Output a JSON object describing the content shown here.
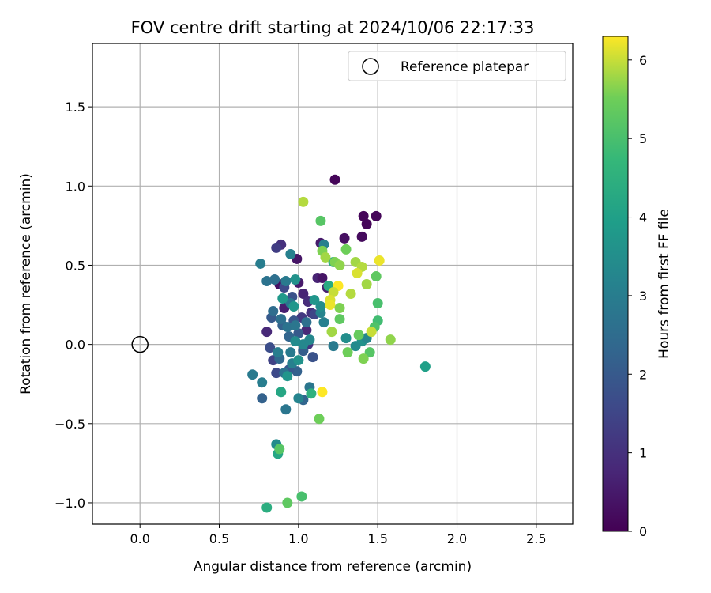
{
  "chart_data": {
    "type": "scatter",
    "title": "FOV centre drift starting at 2024/10/06 22:17:33",
    "xlabel": "Angular distance from reference (arcmin)",
    "ylabel": "Rotation from reference (arcmin)",
    "xlim": [
      -0.3,
      2.73
    ],
    "ylim": [
      -1.135,
      1.9
    ],
    "x_ticks": [
      0.0,
      0.5,
      1.0,
      1.5,
      2.0,
      2.5
    ],
    "x_tick_labels": [
      "0.0",
      "0.5",
      "1.0",
      "1.5",
      "2.0",
      "2.5"
    ],
    "y_ticks": [
      -1.0,
      -0.5,
      0.0,
      0.5,
      1.0,
      1.5
    ],
    "y_tick_labels": [
      "−1.0",
      "−0.5",
      "0.0",
      "0.5",
      "1.0",
      "1.5"
    ],
    "grid": true,
    "legend": {
      "placement": "top-right",
      "entries": [
        {
          "label": "Reference platepar",
          "marker": "open-circle"
        }
      ]
    },
    "reference_point": {
      "x": 0.0,
      "y": 0.0
    },
    "colorbar": {
      "label": "Hours from first FF file",
      "colormap": "viridis",
      "range": [
        0,
        6.3
      ],
      "ticks": [
        0,
        1,
        2,
        3,
        4,
        5,
        6
      ],
      "tick_labels": [
        "0",
        "1",
        "2",
        "3",
        "4",
        "5",
        "6"
      ]
    },
    "points": [
      {
        "x": 1.23,
        "y": 1.04,
        "h": 0.1
      },
      {
        "x": 1.41,
        "y": 0.81,
        "h": 0.1
      },
      {
        "x": 1.49,
        "y": 0.81,
        "h": 0.1
      },
      {
        "x": 1.43,
        "y": 0.76,
        "h": 0.1
      },
      {
        "x": 1.4,
        "y": 0.68,
        "h": 0.2
      },
      {
        "x": 1.29,
        "y": 0.67,
        "h": 0.3
      },
      {
        "x": 1.14,
        "y": 0.64,
        "h": 0.5
      },
      {
        "x": 0.99,
        "y": 0.54,
        "h": 0.4
      },
      {
        "x": 0.89,
        "y": 0.63,
        "h": 1.0
      },
      {
        "x": 0.86,
        "y": 0.61,
        "h": 1.3
      },
      {
        "x": 1.12,
        "y": 0.42,
        "h": 0.7
      },
      {
        "x": 1.15,
        "y": 0.42,
        "h": 0.4
      },
      {
        "x": 1.0,
        "y": 0.39,
        "h": 0.5
      },
      {
        "x": 0.88,
        "y": 0.38,
        "h": 0.3
      },
      {
        "x": 1.18,
        "y": 0.36,
        "h": 0.6
      },
      {
        "x": 1.03,
        "y": 0.32,
        "h": 0.7
      },
      {
        "x": 1.06,
        "y": 0.27,
        "h": 0.9
      },
      {
        "x": 0.91,
        "y": 0.23,
        "h": 0.6
      },
      {
        "x": 1.08,
        "y": 0.2,
        "h": 1.0
      },
      {
        "x": 1.02,
        "y": 0.17,
        "h": 1.2
      },
      {
        "x": 1.05,
        "y": 0.09,
        "h": 0.8
      },
      {
        "x": 0.8,
        "y": 0.08,
        "h": 0.8
      },
      {
        "x": 1.06,
        "y": 0.0,
        "h": 1.1
      },
      {
        "x": 0.84,
        "y": -0.1,
        "h": 1.4
      },
      {
        "x": 0.86,
        "y": -0.18,
        "h": 1.6
      },
      {
        "x": 1.09,
        "y": -0.08,
        "h": 1.8
      },
      {
        "x": 0.91,
        "y": 0.36,
        "h": 1.6
      },
      {
        "x": 0.96,
        "y": 0.3,
        "h": 1.8
      },
      {
        "x": 0.83,
        "y": 0.17,
        "h": 2.0
      },
      {
        "x": 0.97,
        "y": 0.15,
        "h": 1.9
      },
      {
        "x": 1.1,
        "y": 0.19,
        "h": 1.5
      },
      {
        "x": 0.9,
        "y": 0.12,
        "h": 2.2
      },
      {
        "x": 1.0,
        "y": 0.07,
        "h": 2.0
      },
      {
        "x": 0.82,
        "y": -0.02,
        "h": 1.7
      },
      {
        "x": 0.94,
        "y": 0.05,
        "h": 2.3
      },
      {
        "x": 1.03,
        "y": -0.04,
        "h": 2.1
      },
      {
        "x": 0.88,
        "y": -0.09,
        "h": 2.4
      },
      {
        "x": 0.99,
        "y": -0.17,
        "h": 2.2
      },
      {
        "x": 0.94,
        "y": -0.16,
        "h": 2.0
      },
      {
        "x": 0.77,
        "y": -0.34,
        "h": 2.2
      },
      {
        "x": 1.03,
        "y": -0.35,
        "h": 2.3
      },
      {
        "x": 0.8,
        "y": 0.4,
        "h": 2.7
      },
      {
        "x": 0.85,
        "y": 0.41,
        "h": 2.6
      },
      {
        "x": 0.92,
        "y": 0.4,
        "h": 2.9
      },
      {
        "x": 0.95,
        "y": 0.26,
        "h": 2.8
      },
      {
        "x": 0.84,
        "y": 0.21,
        "h": 2.5
      },
      {
        "x": 0.89,
        "y": 0.16,
        "h": 2.6
      },
      {
        "x": 0.93,
        "y": 0.11,
        "h": 2.7
      },
      {
        "x": 0.98,
        "y": 0.12,
        "h": 2.8
      },
      {
        "x": 1.05,
        "y": 0.14,
        "h": 2.6
      },
      {
        "x": 0.95,
        "y": -0.05,
        "h": 2.9
      },
      {
        "x": 0.87,
        "y": -0.05,
        "h": 3.0
      },
      {
        "x": 0.96,
        "y": -0.12,
        "h": 3.1
      },
      {
        "x": 0.91,
        "y": -0.18,
        "h": 2.7
      },
      {
        "x": 0.71,
        "y": -0.19,
        "h": 2.9
      },
      {
        "x": 0.77,
        "y": -0.24,
        "h": 3.0
      },
      {
        "x": 1.07,
        "y": -0.27,
        "h": 2.8
      },
      {
        "x": 1.0,
        "y": -0.34,
        "h": 3.2
      },
      {
        "x": 0.92,
        "y": -0.41,
        "h": 2.8
      },
      {
        "x": 0.76,
        "y": 0.51,
        "h": 3.0
      },
      {
        "x": 0.95,
        "y": 0.57,
        "h": 3.1
      },
      {
        "x": 1.16,
        "y": 0.63,
        "h": 3.1
      },
      {
        "x": 1.14,
        "y": 0.2,
        "h": 3.2
      },
      {
        "x": 1.16,
        "y": 0.14,
        "h": 3.1
      },
      {
        "x": 1.22,
        "y": -0.01,
        "h": 2.9
      },
      {
        "x": 1.03,
        "y": 0.0,
        "h": 3.3
      },
      {
        "x": 0.98,
        "y": 0.02,
        "h": 3.4
      },
      {
        "x": 1.07,
        "y": 0.03,
        "h": 3.3
      },
      {
        "x": 1.3,
        "y": 0.04,
        "h": 3.5
      },
      {
        "x": 1.4,
        "y": 0.02,
        "h": 3.6
      },
      {
        "x": 1.43,
        "y": 0.04,
        "h": 3.3
      },
      {
        "x": 1.36,
        "y": -0.01,
        "h": 3.4
      },
      {
        "x": 1.14,
        "y": 0.24,
        "h": 3.5
      },
      {
        "x": 1.1,
        "y": 0.28,
        "h": 3.7
      },
      {
        "x": 0.98,
        "y": 0.41,
        "h": 3.6
      },
      {
        "x": 0.9,
        "y": 0.29,
        "h": 3.8
      },
      {
        "x": 0.97,
        "y": 0.24,
        "h": 3.7
      },
      {
        "x": 0.93,
        "y": -0.2,
        "h": 3.7
      },
      {
        "x": 1.0,
        "y": -0.1,
        "h": 3.6
      },
      {
        "x": 0.86,
        "y": -0.63,
        "h": 3.4
      },
      {
        "x": 0.87,
        "y": -0.69,
        "h": 4.2
      },
      {
        "x": 1.8,
        "y": -0.14,
        "h": 4.0
      },
      {
        "x": 1.19,
        "y": 0.37,
        "h": 4.3
      },
      {
        "x": 1.22,
        "y": 0.52,
        "h": 4.4
      },
      {
        "x": 1.08,
        "y": -0.31,
        "h": 4.5
      },
      {
        "x": 0.89,
        "y": -0.3,
        "h": 4.2
      },
      {
        "x": 1.5,
        "y": 0.26,
        "h": 5.0
      },
      {
        "x": 1.5,
        "y": 0.15,
        "h": 4.9
      },
      {
        "x": 1.49,
        "y": 0.43,
        "h": 5.3
      },
      {
        "x": 1.48,
        "y": 0.11,
        "h": 5.1
      },
      {
        "x": 1.45,
        "y": -0.05,
        "h": 5.2
      },
      {
        "x": 1.41,
        "y": -0.09,
        "h": 5.6
      },
      {
        "x": 1.38,
        "y": 0.06,
        "h": 5.4
      },
      {
        "x": 1.31,
        "y": -0.05,
        "h": 5.5
      },
      {
        "x": 1.26,
        "y": 0.16,
        "h": 5.3
      },
      {
        "x": 1.23,
        "y": 0.52,
        "h": 5.6
      },
      {
        "x": 1.26,
        "y": 0.5,
        "h": 5.7
      },
      {
        "x": 1.14,
        "y": 0.78,
        "h": 5.2
      },
      {
        "x": 1.03,
        "y": 0.9,
        "h": 5.9
      },
      {
        "x": 1.3,
        "y": 0.6,
        "h": 5.5
      },
      {
        "x": 1.15,
        "y": 0.59,
        "h": 5.6
      },
      {
        "x": 1.17,
        "y": 0.55,
        "h": 5.8
      },
      {
        "x": 1.36,
        "y": 0.52,
        "h": 5.8
      },
      {
        "x": 1.4,
        "y": 0.49,
        "h": 5.9
      },
      {
        "x": 1.37,
        "y": 0.45,
        "h": 6.1
      },
      {
        "x": 1.43,
        "y": 0.38,
        "h": 5.8
      },
      {
        "x": 1.51,
        "y": 0.53,
        "h": 6.2
      },
      {
        "x": 1.25,
        "y": 0.37,
        "h": 6.3
      },
      {
        "x": 1.22,
        "y": 0.33,
        "h": 6.0
      },
      {
        "x": 1.33,
        "y": 0.32,
        "h": 5.9
      },
      {
        "x": 1.2,
        "y": 0.28,
        "h": 6.1
      },
      {
        "x": 1.2,
        "y": 0.25,
        "h": 6.2
      },
      {
        "x": 1.26,
        "y": 0.23,
        "h": 5.6
      },
      {
        "x": 1.21,
        "y": 0.08,
        "h": 5.8
      },
      {
        "x": 1.46,
        "y": 0.08,
        "h": 6.0
      },
      {
        "x": 1.58,
        "y": 0.03,
        "h": 5.7
      },
      {
        "x": 1.15,
        "y": -0.3,
        "h": 6.3
      },
      {
        "x": 1.13,
        "y": -0.47,
        "h": 5.5
      },
      {
        "x": 0.8,
        "y": -1.03,
        "h": 4.4
      },
      {
        "x": 0.93,
        "y": -1.0,
        "h": 5.3
      },
      {
        "x": 1.02,
        "y": -0.96,
        "h": 5.0
      },
      {
        "x": 0.88,
        "y": -0.66,
        "h": 5.2
      }
    ]
  }
}
